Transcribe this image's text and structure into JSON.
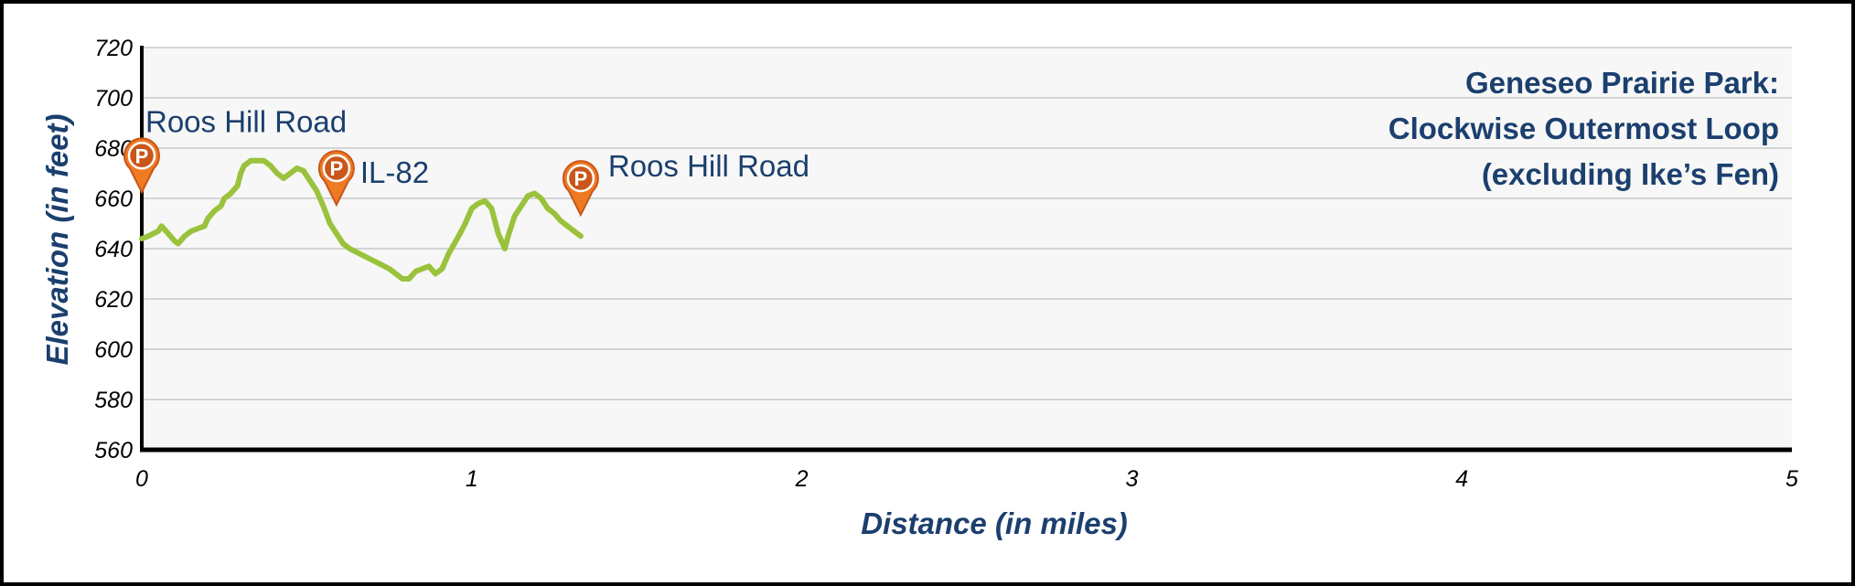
{
  "colors": {
    "text": "#1b3f6e",
    "line": "#9ac23c",
    "plot_bg": "#f6f7f6",
    "grid": "#c7c9c9",
    "marker_fill": "#ef7a24",
    "marker_dark": "#c9561a"
  },
  "chart_data": {
    "type": "line",
    "title_lines": [
      "Geneseo Prairie Park:",
      "Clockwise Outermost Loop",
      "(excluding Ike’s Fen)"
    ],
    "xlabel": "Distance (in miles)",
    "ylabel": "Elevation (in feet)",
    "xlim": [
      0,
      5
    ],
    "ylim": [
      560,
      720
    ],
    "x_ticks": [
      0,
      1,
      2,
      3,
      4,
      5
    ],
    "y_ticks": [
      560,
      580,
      600,
      620,
      640,
      660,
      680,
      700,
      720
    ],
    "grid": true,
    "series": [
      {
        "points": [
          [
            0.0,
            644
          ],
          [
            0.02,
            645
          ],
          [
            0.05,
            647
          ],
          [
            0.06,
            649
          ],
          [
            0.08,
            646
          ],
          [
            0.1,
            643
          ],
          [
            0.11,
            642
          ],
          [
            0.13,
            645
          ],
          [
            0.15,
            647
          ],
          [
            0.17,
            648
          ],
          [
            0.19,
            649
          ],
          [
            0.2,
            652
          ],
          [
            0.22,
            655
          ],
          [
            0.24,
            657
          ],
          [
            0.25,
            660
          ],
          [
            0.27,
            662
          ],
          [
            0.29,
            665
          ],
          [
            0.3,
            670
          ],
          [
            0.31,
            673
          ],
          [
            0.33,
            675
          ],
          [
            0.35,
            675
          ],
          [
            0.37,
            675
          ],
          [
            0.39,
            673
          ],
          [
            0.41,
            670
          ],
          [
            0.43,
            668
          ],
          [
            0.45,
            670
          ],
          [
            0.47,
            672
          ],
          [
            0.49,
            671
          ],
          [
            0.51,
            667
          ],
          [
            0.53,
            663
          ],
          [
            0.55,
            657
          ],
          [
            0.57,
            650
          ],
          [
            0.59,
            646
          ],
          [
            0.61,
            642
          ],
          [
            0.63,
            640
          ],
          [
            0.66,
            638
          ],
          [
            0.69,
            636
          ],
          [
            0.72,
            634
          ],
          [
            0.75,
            632
          ],
          [
            0.77,
            630
          ],
          [
            0.79,
            628
          ],
          [
            0.81,
            628
          ],
          [
            0.83,
            631
          ],
          [
            0.85,
            632
          ],
          [
            0.87,
            633
          ],
          [
            0.89,
            630
          ],
          [
            0.91,
            632
          ],
          [
            0.93,
            638
          ],
          [
            0.96,
            645
          ],
          [
            0.98,
            650
          ],
          [
            1.0,
            656
          ],
          [
            1.02,
            658
          ],
          [
            1.04,
            659
          ],
          [
            1.06,
            656
          ],
          [
            1.08,
            646
          ],
          [
            1.1,
            640
          ],
          [
            1.11,
            645
          ],
          [
            1.13,
            653
          ],
          [
            1.15,
            657
          ],
          [
            1.17,
            661
          ],
          [
            1.19,
            662
          ],
          [
            1.21,
            660
          ],
          [
            1.23,
            656
          ],
          [
            1.25,
            654
          ],
          [
            1.27,
            651
          ],
          [
            1.29,
            649
          ],
          [
            1.31,
            647
          ],
          [
            1.33,
            645
          ]
        ]
      }
    ],
    "markers": [
      {
        "x": 0.0,
        "elevation": 669,
        "label": "Roos Hill Road",
        "label_pos": "above"
      },
      {
        "x": 0.59,
        "elevation": 664,
        "label": "IL-82",
        "label_pos": "right"
      },
      {
        "x": 1.33,
        "elevation": 660,
        "label": "Roos Hill Road",
        "label_pos": "upper-right"
      }
    ],
    "marker_symbol": "P"
  }
}
